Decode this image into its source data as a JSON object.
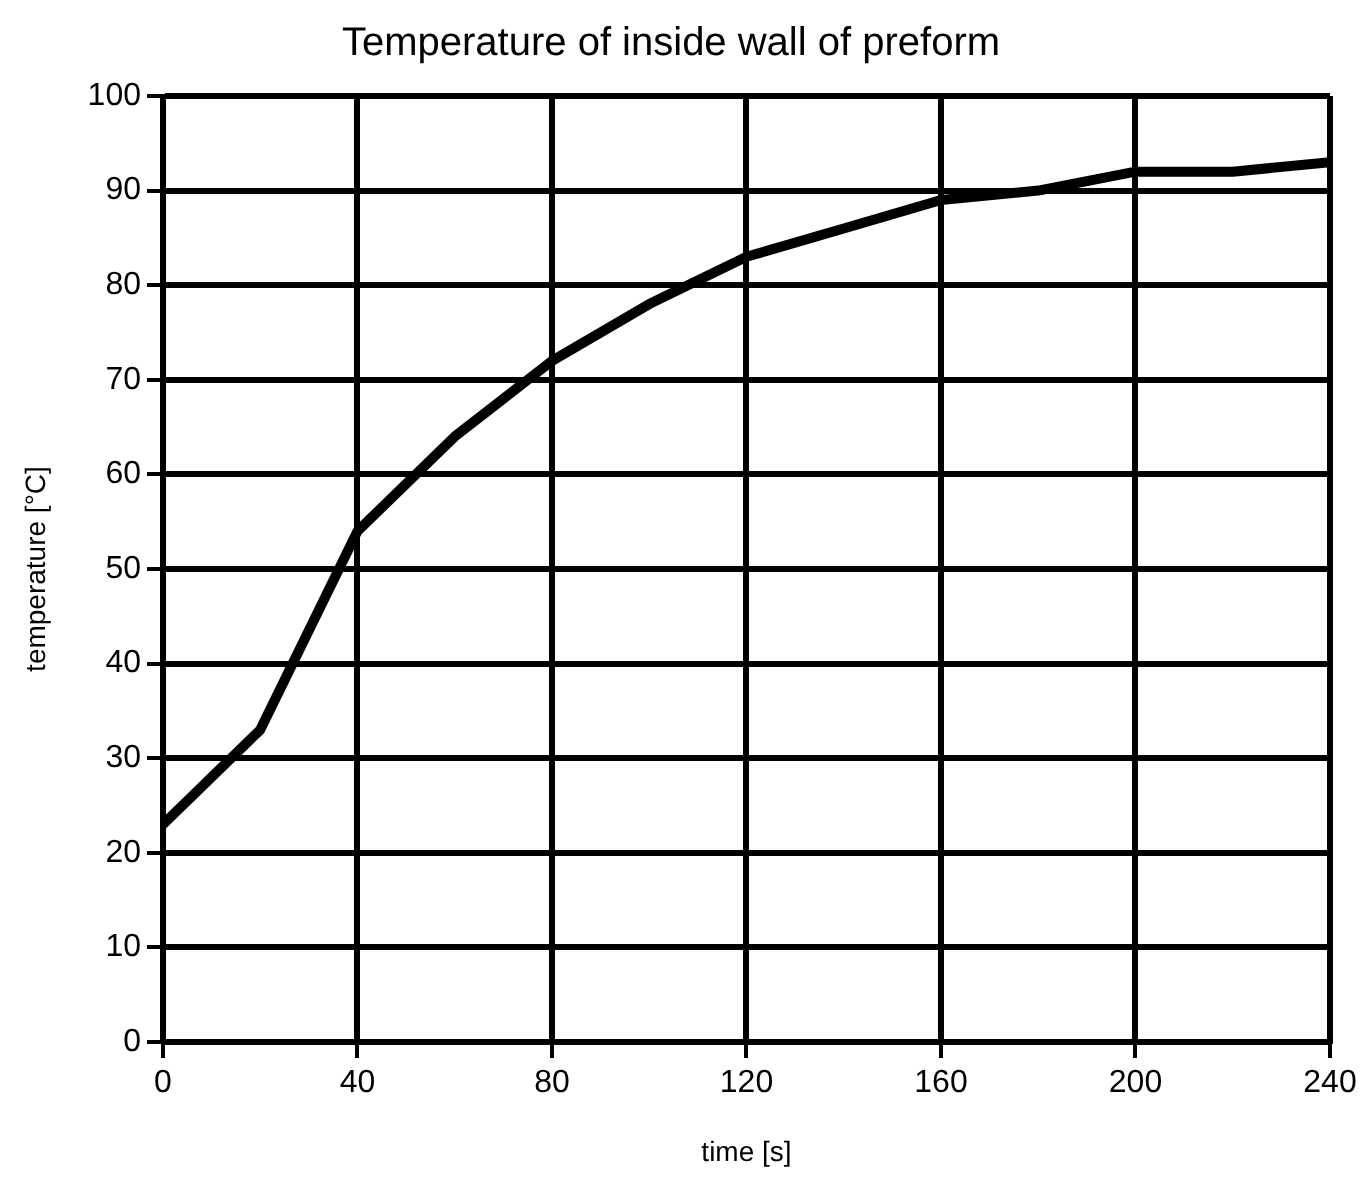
{
  "chart_data": {
    "type": "line",
    "title": "Temperature of inside wall of preform",
    "xlabel": "time [s]",
    "ylabel": "temperature [°C]",
    "x": [
      0,
      20,
      40,
      60,
      80,
      100,
      120,
      140,
      160,
      180,
      200,
      220,
      240
    ],
    "series": [
      {
        "color": "#000000",
        "values": [
          23,
          33,
          54,
          64,
          72,
          78,
          83,
          86,
          89,
          90,
          92,
          92,
          93
        ]
      }
    ],
    "xlim": [
      0,
      240
    ],
    "xticks": [
      0,
      40,
      80,
      120,
      160,
      200,
      240
    ],
    "ylim": [
      0,
      100
    ],
    "yticks": [
      0,
      10,
      20,
      30,
      40,
      50,
      60,
      70,
      80,
      90,
      100
    ],
    "grid": true,
    "legend": false,
    "marker": "none",
    "line_style": "solid"
  }
}
